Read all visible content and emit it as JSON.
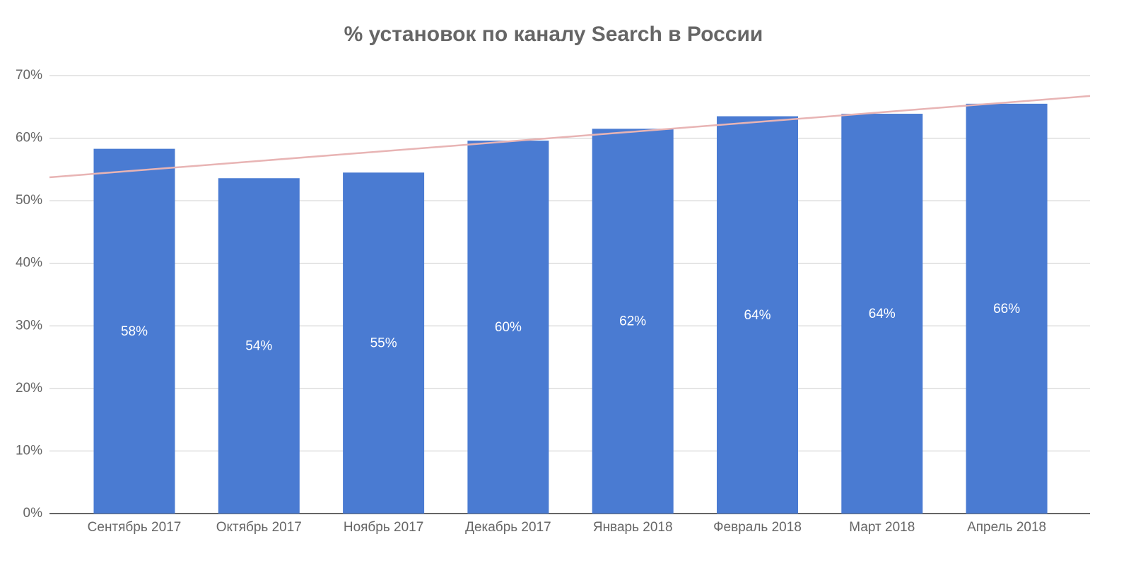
{
  "chart_data": {
    "type": "bar",
    "title": "% установок по каналу Search в России",
    "categories": [
      "Сентябрь 2017",
      "Октябрь 2017",
      "Ноябрь 2017",
      "Декабрь 2017",
      "Январь 2018",
      "Февраль 2018",
      "Март 2018",
      "Апрель 2018"
    ],
    "values": [
      58.3,
      53.6,
      54.5,
      59.6,
      61.5,
      63.5,
      63.9,
      65.5
    ],
    "value_labels": [
      "58%",
      "54%",
      "55%",
      "60%",
      "62%",
      "64%",
      "64%",
      "66%"
    ],
    "color": "#4a7bd2",
    "trendline": {
      "color": "#e8b4b4",
      "values": [
        54.8,
        65.7
      ]
    },
    "ylim": [
      0,
      70
    ],
    "yticks": [
      {
        "value": 0,
        "label": "0%"
      },
      {
        "value": 10,
        "label": "10%"
      },
      {
        "value": 20,
        "label": "20%"
      },
      {
        "value": 30,
        "label": "30%"
      },
      {
        "value": 40,
        "label": "40%"
      },
      {
        "value": 50,
        "label": "50%"
      },
      {
        "value": 60,
        "label": "60%"
      },
      {
        "value": 70,
        "label": "70%"
      }
    ],
    "grid": true
  }
}
